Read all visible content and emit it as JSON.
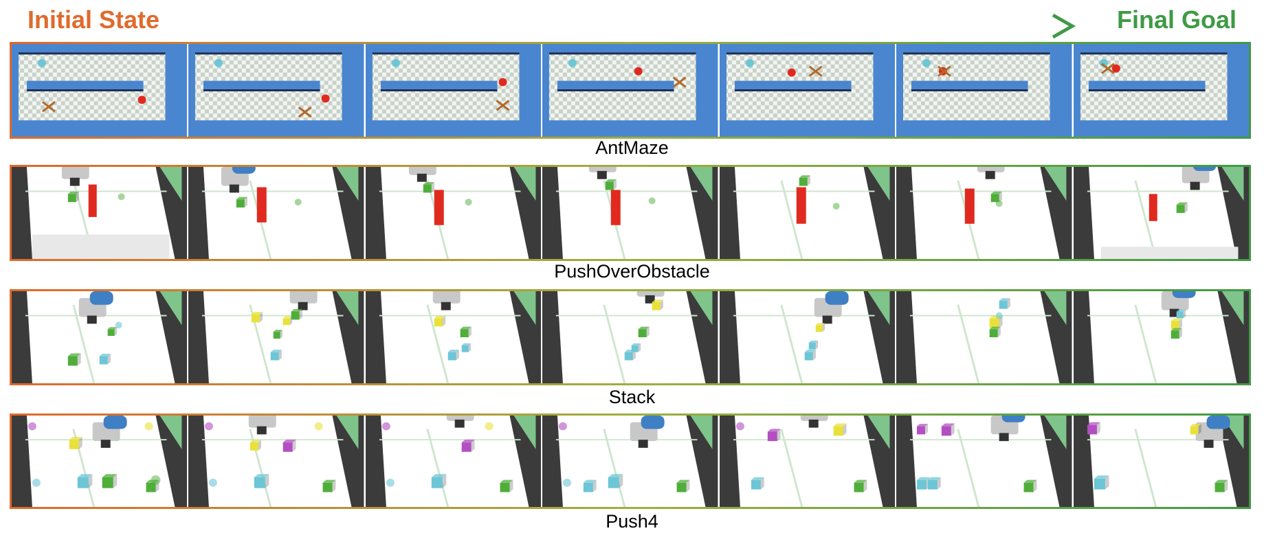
{
  "header": {
    "start_label": "Initial State",
    "end_label": "Final Goal",
    "start_color": "#e06a2c",
    "end_color": "#3f9a45"
  },
  "tasks": [
    {
      "id": "antmaze",
      "caption": "AntMaze",
      "frames": 7
    },
    {
      "id": "pushoverobstacle",
      "caption": "PushOverObstacle",
      "frames": 7
    },
    {
      "id": "stack",
      "caption": "Stack",
      "frames": 7
    },
    {
      "id": "push4",
      "caption": "Push4",
      "frames": 7
    }
  ],
  "colors": {
    "maze_wall": "#4a86cf",
    "object_red": "#e02a1f",
    "object_green": "#4fae3a",
    "object_yellow": "#e9e13a",
    "object_cyan": "#6cc6d6",
    "object_purple": "#b34fc2",
    "robot_arm": "#3f7fc4"
  }
}
